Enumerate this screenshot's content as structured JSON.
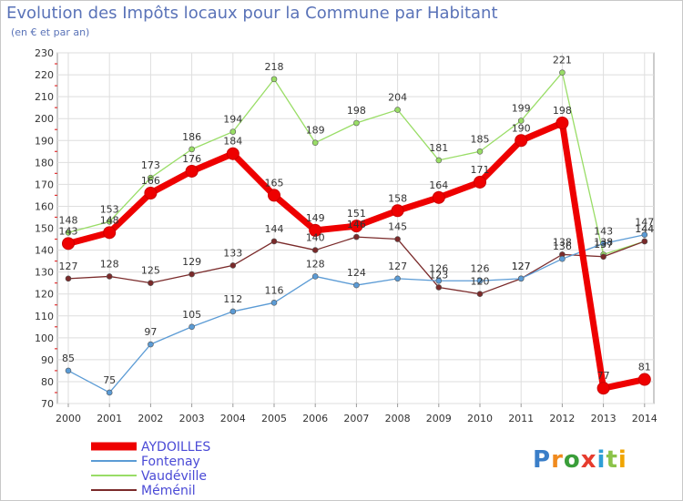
{
  "chart_data": {
    "type": "line",
    "title": "Evolution des Impôts locaux pour la Commune par Habitant",
    "subtitle": "(en € et par an)",
    "xlabel": "",
    "ylabel": "",
    "x": [
      2000,
      2001,
      2002,
      2003,
      2004,
      2005,
      2006,
      2007,
      2008,
      2009,
      2010,
      2011,
      2012,
      2013,
      2014
    ],
    "ylim": [
      70,
      230
    ],
    "yticks": [
      70,
      80,
      90,
      100,
      110,
      120,
      130,
      140,
      150,
      160,
      170,
      180,
      190,
      200,
      210,
      220,
      230
    ],
    "grid": true,
    "legend": "bottom-left",
    "series": [
      {
        "name": "AYDOILLES",
        "values": [
          143,
          148,
          166,
          176,
          184,
          165,
          149,
          151,
          158,
          164,
          171,
          190,
          198,
          77,
          81
        ],
        "color": "#ee0000"
      },
      {
        "name": "Fontenay",
        "values": [
          85,
          75,
          97,
          105,
          112,
          116,
          128,
          124,
          127,
          126,
          126,
          127,
          136,
          143,
          147
        ],
        "color": "#5b9bd5"
      },
      {
        "name": "Vaudéville",
        "values": [
          148,
          153,
          173,
          186,
          194,
          218,
          189,
          198,
          204,
          181,
          185,
          199,
          221,
          138,
          144
        ],
        "color": "#99dd66"
      },
      {
        "name": "Méménil",
        "values": [
          127,
          128,
          125,
          129,
          133,
          144,
          140,
          146,
          145,
          123,
          120,
          127,
          138,
          137,
          144
        ],
        "color": "#7a2a2a"
      }
    ]
  },
  "brand": {
    "letters": [
      "P",
      "r",
      "o",
      "x",
      "i",
      "t",
      "i"
    ]
  }
}
